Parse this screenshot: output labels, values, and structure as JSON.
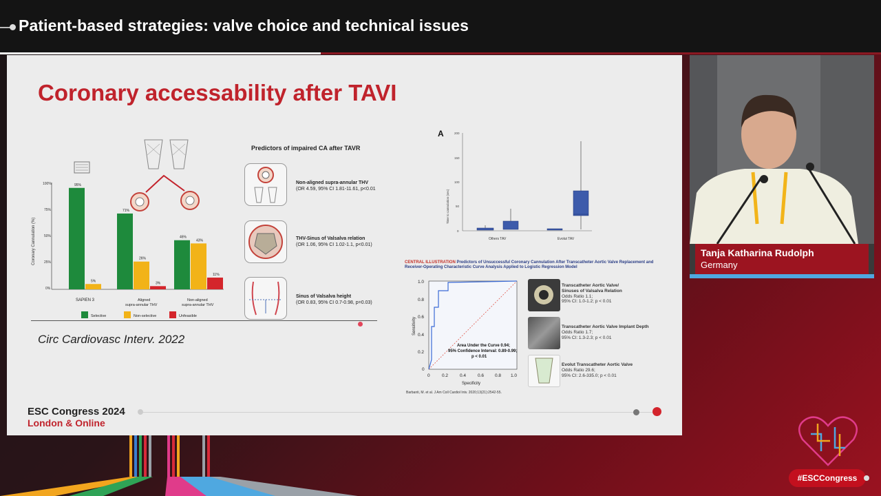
{
  "header": {
    "title": "Patient-based strategies: valve choice and technical issues"
  },
  "slide": {
    "title": "Coronary accessability after TAVI",
    "citation": "Circ Cardiovasc Interv. 2022",
    "footer_line1": "ESC Congress 2024",
    "footer_line2": "London & Online"
  },
  "left_chart": {
    "ylabel": "Coronary Cannulation (%)",
    "yticks": [
      "100%",
      "75%",
      "50%",
      "25%",
      "0%"
    ],
    "groups": [
      "SAPIEN 3",
      "Aligned supra-annular THV",
      "Non-aligned supra-annular THV"
    ],
    "legend": [
      "Selective",
      "Non-selective",
      "Unfeasible"
    ],
    "colors": {
      "selective": "#1e8a3c",
      "nonselective": "#f2b318",
      "unfeasible": "#d4252b"
    },
    "value_labels": [
      [
        "95%",
        "5%",
        ""
      ],
      [
        "71%",
        "26%",
        "3%"
      ],
      [
        "46%",
        "43%",
        "11%"
      ]
    ]
  },
  "predictors": {
    "title": "Predictors of impaired CA after TAVR",
    "items": [
      {
        "label": "Non-aligned supra-annular THV",
        "stat": "(OR 4.59, 95% CI 1.81-11.61, p<0.01"
      },
      {
        "label": "THV-Sinus of Valsalva relation",
        "stat": "(OR 1.06, 95% CI 1.02-1.1, p<0.01)"
      },
      {
        "label": "Sinus of Valsalva height",
        "stat": "(OR 0.83, 95% CI 0.7-0.98, p=0.03)"
      }
    ]
  },
  "boxplot": {
    "panel_label": "A",
    "ylabel": "Time to cannulation (sec)",
    "yticks": [
      "200",
      "150",
      "100",
      "50",
      "0"
    ],
    "categories": [
      "Others TAV",
      "Evolut TAV"
    ]
  },
  "central": {
    "title_strong": "CENTRAL ILLUSTRATION",
    "title_rest": "Predictors of Unsuccessful Coronary Cannulation After Transcatheter Aortic Valve Replacement and Receiver-Operating Characteristic Curve Analysis Applied to Logistic Regression Model",
    "roc_ylabel": "Sensitivity",
    "roc_xlabel": "Specificity",
    "roc_ticks": [
      "0",
      "0.2",
      "0.4",
      "0.6",
      "0.8",
      "1.0"
    ],
    "auc_line1": "Area Under the Curve 0.94;",
    "auc_line2": "95% Confidence Interval: 0.89-0.99;",
    "auc_line3": "p < 0.01",
    "items": [
      {
        "l1": "Transcatheter Aortic Valve/",
        "l2": "Sinuses of Valsalva Relation",
        "l3": "Odds Ratio 1.1;",
        "l4": "95% CI: 1.0-1.2; p < 0.01"
      },
      {
        "l1": "Transcatheter Aortic Valve Implant Depth",
        "l2": "",
        "l3": "Odds Ratio 1.7;",
        "l4": "95% CI: 1.3-2.3; p < 0.01"
      },
      {
        "l1": "Evolut Transcatheter Aortic Valve",
        "l2": "",
        "l3": "Odds Ratio 29.6;",
        "l4": "95% CI: 2.6-335.0; p < 0.01"
      }
    ],
    "reference": "Barbanti, M. et al. J Am Coll Cardiol Intv. 2020;13(21):2542-55."
  },
  "speaker": {
    "name": "Tanja Katharina Rudolph",
    "country": "Germany"
  },
  "hashtag": "#ESCCongress"
}
